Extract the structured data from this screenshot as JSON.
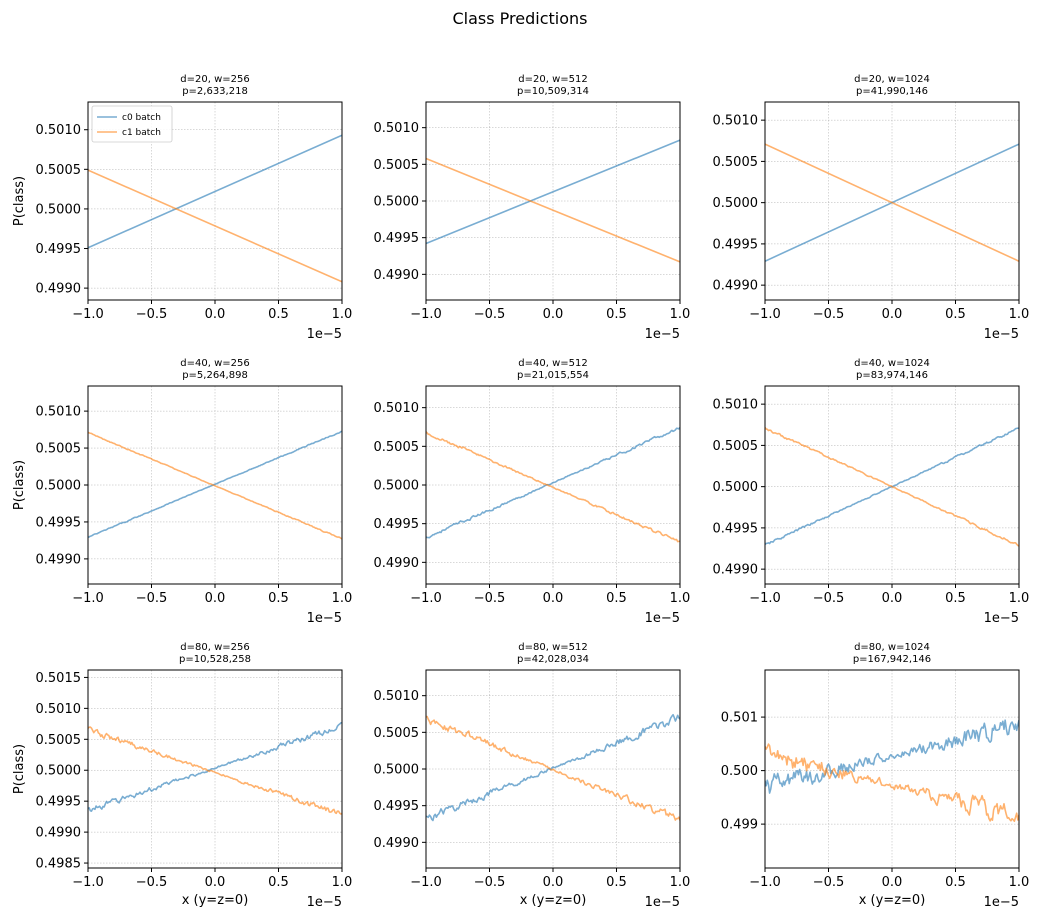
{
  "figure": {
    "suptitle": "Class Predictions",
    "colors": {
      "c0": "#1f77b4",
      "c1": "#ff7f0e",
      "grid": "#b0b0b0"
    },
    "line_alpha": 0.6,
    "grid": true,
    "legend_location": "upper-left of first panel"
  },
  "chart_data": [
    {
      "type": "line",
      "title": [
        "d=20, w=256",
        "p=2,633,218"
      ],
      "xlabel": "",
      "ylabel": "P(class)",
      "xlim": [
        -1.0,
        1.0
      ],
      "ylim": [
        0.49885,
        0.50135
      ],
      "xticks": [
        -1.0,
        -0.5,
        0.0,
        0.5,
        1.0
      ],
      "xtick_labels": [
        "−1.0",
        "−0.5",
        "0.0",
        "0.5",
        "1.0"
      ],
      "x_offset_text": "1e−5",
      "yticks": [
        0.499,
        0.4995,
        0.5,
        0.5005,
        0.501
      ],
      "ytick_labels": [
        "0.4990",
        "0.4995",
        "0.5000",
        "0.5005",
        "0.5010"
      ],
      "legend": [
        "c0 batch",
        "c1 batch"
      ],
      "series": [
        {
          "name": "c0 batch",
          "x": [
            -1.0,
            1.0
          ],
          "y": [
            0.49951,
            0.50093
          ],
          "noise": 0
        },
        {
          "name": "c1 batch",
          "x": [
            -1.0,
            1.0
          ],
          "y": [
            0.50049,
            0.49908
          ],
          "noise": 0
        }
      ]
    },
    {
      "type": "line",
      "title": [
        "d=20, w=512",
        "p=10,509,314"
      ],
      "xlabel": "",
      "ylabel": "",
      "xlim": [
        -1.0,
        1.0
      ],
      "ylim": [
        0.49865,
        0.50135
      ],
      "xticks": [
        -1.0,
        -0.5,
        0.0,
        0.5,
        1.0
      ],
      "xtick_labels": [
        "−1.0",
        "−0.5",
        "0.0",
        "0.5",
        "1.0"
      ],
      "x_offset_text": "1e−5",
      "yticks": [
        0.499,
        0.4995,
        0.5,
        0.5005,
        0.501
      ],
      "ytick_labels": [
        "0.4990",
        "0.4995",
        "0.5000",
        "0.5005",
        "0.5010"
      ],
      "legend": [],
      "series": [
        {
          "name": "c0 batch",
          "x": [
            -1.0,
            1.0
          ],
          "y": [
            0.49942,
            0.50083
          ],
          "noise": 0
        },
        {
          "name": "c1 batch",
          "x": [
            -1.0,
            1.0
          ],
          "y": [
            0.50058,
            0.49917
          ],
          "noise": 0
        }
      ]
    },
    {
      "type": "line",
      "title": [
        "d=20, w=1024",
        "p=41,990,146"
      ],
      "xlabel": "",
      "ylabel": "",
      "xlim": [
        -1.0,
        1.0
      ],
      "ylim": [
        0.49882,
        0.50122
      ],
      "xticks": [
        -1.0,
        -0.5,
        0.0,
        0.5,
        1.0
      ],
      "xtick_labels": [
        "−1.0",
        "−0.5",
        "0.0",
        "0.5",
        "1.0"
      ],
      "x_offset_text": "1e−5",
      "yticks": [
        0.499,
        0.4995,
        0.5,
        0.5005,
        0.501
      ],
      "ytick_labels": [
        "0.4990",
        "0.4995",
        "0.5000",
        "0.5005",
        "0.5010"
      ],
      "legend": [],
      "series": [
        {
          "name": "c0 batch",
          "x": [
            -1.0,
            1.0
          ],
          "y": [
            0.49929,
            0.50071
          ],
          "noise": 0
        },
        {
          "name": "c1 batch",
          "x": [
            -1.0,
            1.0
          ],
          "y": [
            0.50071,
            0.49929
          ],
          "noise": 0
        }
      ]
    },
    {
      "type": "line",
      "title": [
        "d=40, w=256",
        "p=5,264,898"
      ],
      "xlabel": "",
      "ylabel": "P(class)",
      "xlim": [
        -1.0,
        1.0
      ],
      "ylim": [
        0.49866,
        0.50134
      ],
      "xticks": [
        -1.0,
        -0.5,
        0.0,
        0.5,
        1.0
      ],
      "xtick_labels": [
        "−1.0",
        "−0.5",
        "0.0",
        "0.5",
        "1.0"
      ],
      "x_offset_text": "1e−5",
      "yticks": [
        0.499,
        0.4995,
        0.5,
        0.5005,
        0.501
      ],
      "ytick_labels": [
        "0.4990",
        "0.4995",
        "0.5000",
        "0.5005",
        "0.5010"
      ],
      "legend": [],
      "series": [
        {
          "name": "c0 batch",
          "x": [
            -1.0,
            1.0
          ],
          "y": [
            0.49929,
            0.50073
          ],
          "noise": 1.2e-05
        },
        {
          "name": "c1 batch",
          "x": [
            -1.0,
            1.0
          ],
          "y": [
            0.50071,
            0.49927
          ],
          "noise": 1.2e-05
        }
      ]
    },
    {
      "type": "line",
      "title": [
        "d=40, w=512",
        "p=21,015,554"
      ],
      "xlabel": "",
      "ylabel": "",
      "xlim": [
        -1.0,
        1.0
      ],
      "ylim": [
        0.49872,
        0.50128
      ],
      "xticks": [
        -1.0,
        -0.5,
        0.0,
        0.5,
        1.0
      ],
      "xtick_labels": [
        "−1.0",
        "−0.5",
        "0.0",
        "0.5",
        "1.0"
      ],
      "x_offset_text": "1e−5",
      "yticks": [
        0.499,
        0.4995,
        0.5,
        0.5005,
        0.501
      ],
      "ytick_labels": [
        "0.4990",
        "0.4995",
        "0.5000",
        "0.5005",
        "0.5010"
      ],
      "legend": [],
      "series": [
        {
          "name": "c0 batch",
          "x": [
            -1.0,
            1.0
          ],
          "y": [
            0.49932,
            0.50074
          ],
          "noise": 2.8e-05
        },
        {
          "name": "c1 batch",
          "x": [
            -1.0,
            1.0
          ],
          "y": [
            0.50068,
            0.49926
          ],
          "noise": 2.8e-05
        }
      ]
    },
    {
      "type": "line",
      "title": [
        "d=40, w=1024",
        "p=83,974,146"
      ],
      "xlabel": "",
      "ylabel": "",
      "xlim": [
        -1.0,
        1.0
      ],
      "ylim": [
        0.49882,
        0.50122
      ],
      "xticks": [
        -1.0,
        -0.5,
        0.0,
        0.5,
        1.0
      ],
      "xtick_labels": [
        "−1.0",
        "−0.5",
        "0.0",
        "0.5",
        "1.0"
      ],
      "x_offset_text": "1e−5",
      "yticks": [
        0.499,
        0.4995,
        0.5,
        0.5005,
        0.501
      ],
      "ytick_labels": [
        "0.4990",
        "0.4995",
        "0.5000",
        "0.5005",
        "0.5010"
      ],
      "legend": [],
      "series": [
        {
          "name": "c0 batch",
          "x": [
            -1.0,
            1.0
          ],
          "y": [
            0.49929,
            0.50071
          ],
          "noise": 2.2e-05
        },
        {
          "name": "c1 batch",
          "x": [
            -1.0,
            1.0
          ],
          "y": [
            0.50071,
            0.49929
          ],
          "noise": 2.2e-05
        }
      ]
    },
    {
      "type": "line",
      "title": [
        "d=80, w=256",
        "p=10,528,258"
      ],
      "xlabel": "x (y=z=0)",
      "ylabel": "P(class)",
      "xlim": [
        -1.0,
        1.0
      ],
      "ylim": [
        0.49842,
        0.50162
      ],
      "xticks": [
        -1.0,
        -0.5,
        0.0,
        0.5,
        1.0
      ],
      "xtick_labels": [
        "−1.0",
        "−0.5",
        "0.0",
        "0.5",
        "1.0"
      ],
      "x_offset_text": "1e−5",
      "yticks": [
        0.4985,
        0.499,
        0.4995,
        0.5,
        0.5005,
        0.501,
        0.5015
      ],
      "ytick_labels": [
        "0.4985",
        "0.4990",
        "0.4995",
        "0.5000",
        "0.5005",
        "0.5010",
        "0.5015"
      ],
      "legend": [],
      "series": [
        {
          "name": "c0 batch",
          "x": [
            -1.0,
            1.0
          ],
          "y": [
            0.49935,
            0.50072
          ],
          "noise": 7e-05
        },
        {
          "name": "c1 batch",
          "x": [
            -1.0,
            1.0
          ],
          "y": [
            0.50065,
            0.49928
          ],
          "noise": 7e-05
        }
      ]
    },
    {
      "type": "line",
      "title": [
        "d=80, w=512",
        "p=42,028,034"
      ],
      "xlabel": "x (y=z=0)",
      "ylabel": "",
      "xlim": [
        -1.0,
        1.0
      ],
      "ylim": [
        0.49865,
        0.50135
      ],
      "xticks": [
        -1.0,
        -0.5,
        0.0,
        0.5,
        1.0
      ],
      "xtick_labels": [
        "−1.0",
        "−0.5",
        "0.0",
        "0.5",
        "1.0"
      ],
      "x_offset_text": "1e−5",
      "yticks": [
        0.499,
        0.4995,
        0.5,
        0.5005,
        0.501
      ],
      "ytick_labels": [
        "0.4990",
        "0.4995",
        "0.5000",
        "0.5005",
        "0.5010"
      ],
      "legend": [],
      "series": [
        {
          "name": "c0 batch",
          "x": [
            -1.0,
            1.0
          ],
          "y": [
            0.49932,
            0.5007
          ],
          "noise": 8e-05
        },
        {
          "name": "c1 batch",
          "x": [
            -1.0,
            1.0
          ],
          "y": [
            0.50068,
            0.4993
          ],
          "noise": 8e-05
        }
      ]
    },
    {
      "type": "line",
      "title": [
        "d=80, w=1024",
        "p=167,942,146"
      ],
      "xlabel": "x (y=z=0)",
      "ylabel": "",
      "xlim": [
        -1.0,
        1.0
      ],
      "ylim": [
        0.49818,
        0.50188
      ],
      "xticks": [
        -1.0,
        -0.5,
        0.0,
        0.5,
        1.0
      ],
      "xtick_labels": [
        "−1.0",
        "−0.5",
        "0.0",
        "0.5",
        "1.0"
      ],
      "x_offset_text": "1e−5",
      "yticks": [
        0.499,
        0.5,
        0.501
      ],
      "ytick_labels": [
        "0.499",
        "0.500",
        "0.501"
      ],
      "legend": [],
      "series": [
        {
          "name": "c0 batch",
          "x": [
            -1.0,
            1.0
          ],
          "y": [
            0.49968,
            0.50088
          ],
          "noise": 0.00028
        },
        {
          "name": "c1 batch",
          "x": [
            -1.0,
            1.0
          ],
          "y": [
            0.50032,
            0.49912
          ],
          "noise": 0.00028
        }
      ]
    }
  ]
}
